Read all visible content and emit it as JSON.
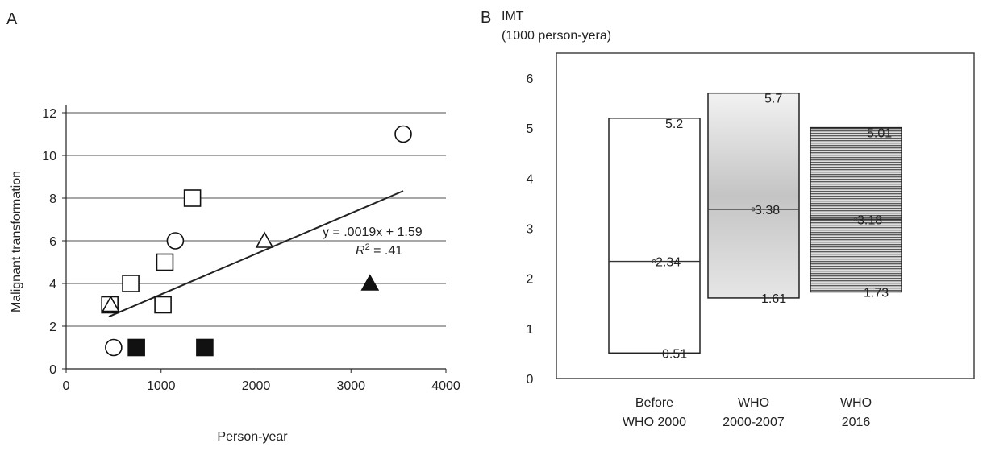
{
  "panels": {
    "a": "A",
    "b": "B"
  },
  "chart_data": [
    {
      "type": "scatter",
      "title": "",
      "xlabel": "Person-year",
      "ylabel": "Malignant transformation",
      "xlim": [
        0,
        4000
      ],
      "ylim": [
        0,
        12
      ],
      "xticks": [
        0,
        1000,
        2000,
        3000,
        4000
      ],
      "yticks": [
        0,
        2,
        4,
        6,
        8,
        10,
        12
      ],
      "grid": "horizontal",
      "series": [
        {
          "marker": "circle-open",
          "color": "#ffffff",
          "points": [
            [
              500,
              1
            ],
            [
              1150,
              6
            ],
            [
              3550,
              11
            ]
          ]
        },
        {
          "marker": "square-open",
          "color": "#ffffff",
          "points": [
            [
              460,
              3
            ],
            [
              680,
              4
            ],
            [
              1020,
              3
            ],
            [
              1040,
              5
            ],
            [
              1330,
              8
            ]
          ]
        },
        {
          "marker": "triangle-open",
          "color": "#ffffff",
          "points": [
            [
              470,
              3
            ],
            [
              2090,
              6
            ]
          ]
        },
        {
          "marker": "square-filled",
          "color": "#111111",
          "points": [
            [
              740,
              1
            ],
            [
              1460,
              1
            ]
          ]
        },
        {
          "marker": "triangle-filled",
          "color": "#111111",
          "points": [
            [
              3200,
              4
            ]
          ]
        }
      ],
      "trendline": {
        "slope": 0.0019,
        "intercept": 1.59,
        "x_range": [
          450,
          3550
        ]
      },
      "equation": "y = .0019x + 1.59",
      "r2_symbol": "R",
      "r2_exp": "2",
      "r2_value": " = .41"
    },
    {
      "type": "floating-bar",
      "title": "",
      "ylabel_line1": "IMT",
      "ylabel_line2": "(1000 person-yera)",
      "ylim": [
        0,
        6.5
      ],
      "yticks": [
        0,
        1,
        2,
        3,
        4,
        5,
        6
      ],
      "categories": [
        {
          "line1": "Before",
          "line2": "WHO 2000"
        },
        {
          "line1": "WHO",
          "line2": "2000-2007"
        },
        {
          "line1": "WHO",
          "line2": "2016"
        }
      ],
      "bars": [
        {
          "low": 0.51,
          "mid": 2.34,
          "high": 5.2,
          "low_label": "0.51",
          "mid_label": "2.34",
          "high_label": "5.2",
          "fill": "white"
        },
        {
          "low": 1.61,
          "mid": 3.38,
          "high": 5.7,
          "low_label": "1.61",
          "mid_label": "3.38",
          "high_label": "5.7",
          "fill": "gradient"
        },
        {
          "low": 1.73,
          "mid": 3.18,
          "high": 5.01,
          "low_label": "1.73",
          "mid_label": "3.18",
          "high_label": "5.01",
          "fill": "stripes"
        }
      ]
    }
  ]
}
